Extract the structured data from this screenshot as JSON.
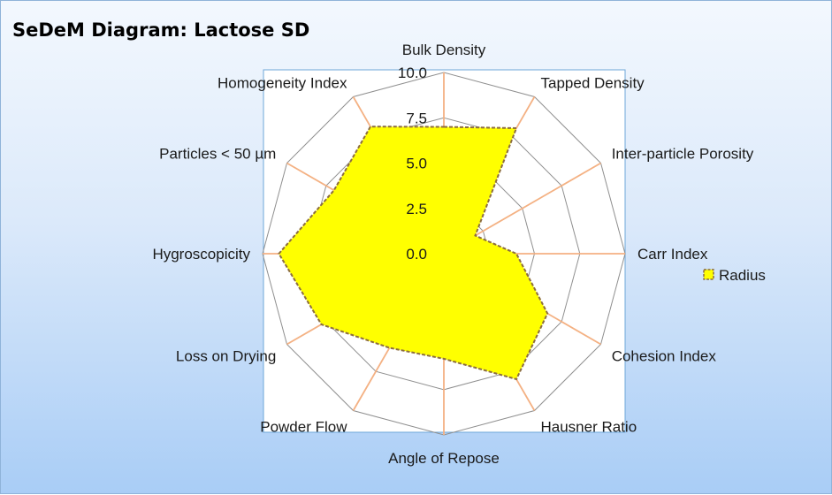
{
  "chart_data": {
    "type": "radar",
    "title": "SeDeM  Diagram: Lactose SD",
    "axes": [
      "Bulk Density",
      "Tapped Density",
      "Inter-particle Porosity",
      "Carr Index",
      "Cohesion Index",
      "Hausner Ratio",
      "Angle of Repose",
      "Powder Flow",
      "Loss on Drying",
      "Hygroscopicity",
      "Particles < 50 µm",
      "Homogeneity Index"
    ],
    "series": [
      {
        "name": "Radius",
        "values": [
          7.0,
          8.0,
          2.0,
          4.0,
          6.6,
          8.0,
          5.8,
          6.0,
          7.8,
          9.1,
          7.0,
          8.1
        ]
      }
    ],
    "rlim": [
      0,
      10
    ],
    "ticks": [
      "0.0",
      "2.5",
      "5.0",
      "7.5",
      "10.0"
    ],
    "tick_values": [
      0,
      2.5,
      5,
      7.5,
      10
    ],
    "grid": true,
    "legend_position": "right",
    "colors": {
      "fill": "#ffff00",
      "outline": "#8c6d3f",
      "grid": "#8f8f8f",
      "spoke": "#f4b183",
      "plot_border": "#6ea7d8"
    }
  }
}
